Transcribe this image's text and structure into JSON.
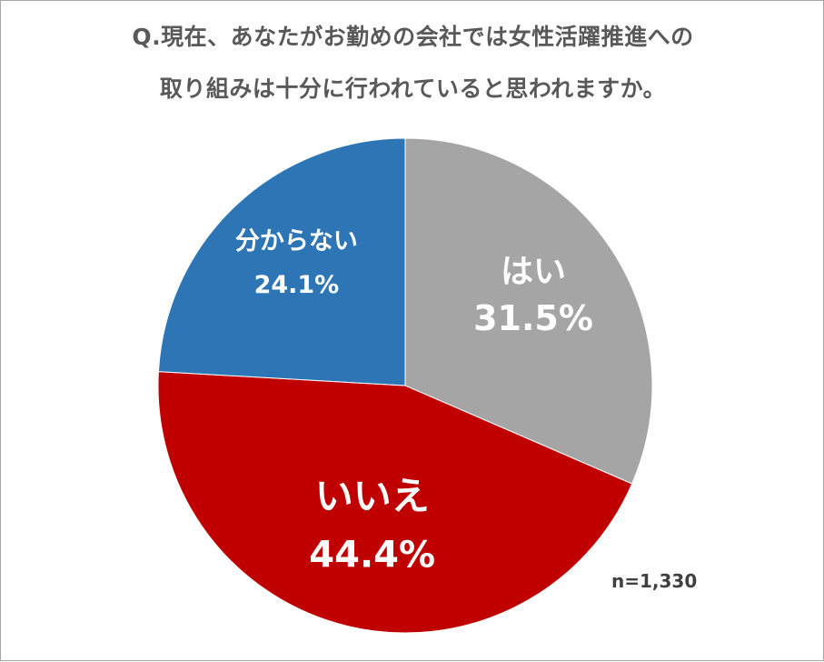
{
  "chart_data": {
    "type": "pie",
    "title_lines": [
      "Q.現在、あなたがお勤めの会社では女性活躍推進への",
      "取り組みは十分に行われていると思われますか。"
    ],
    "slices": [
      {
        "label": "はい",
        "value": 31.5,
        "value_label": "31.5%",
        "color": "#a5a5a5"
      },
      {
        "label": "いいえ",
        "value": 44.4,
        "value_label": "44.4%",
        "color": "#c00000"
      },
      {
        "label": "分からない",
        "value": 24.1,
        "value_label": "24.1%",
        "color": "#2e75b6"
      }
    ],
    "start_angle_deg": 0,
    "direction": "clockwise",
    "note": "n=1,330"
  }
}
